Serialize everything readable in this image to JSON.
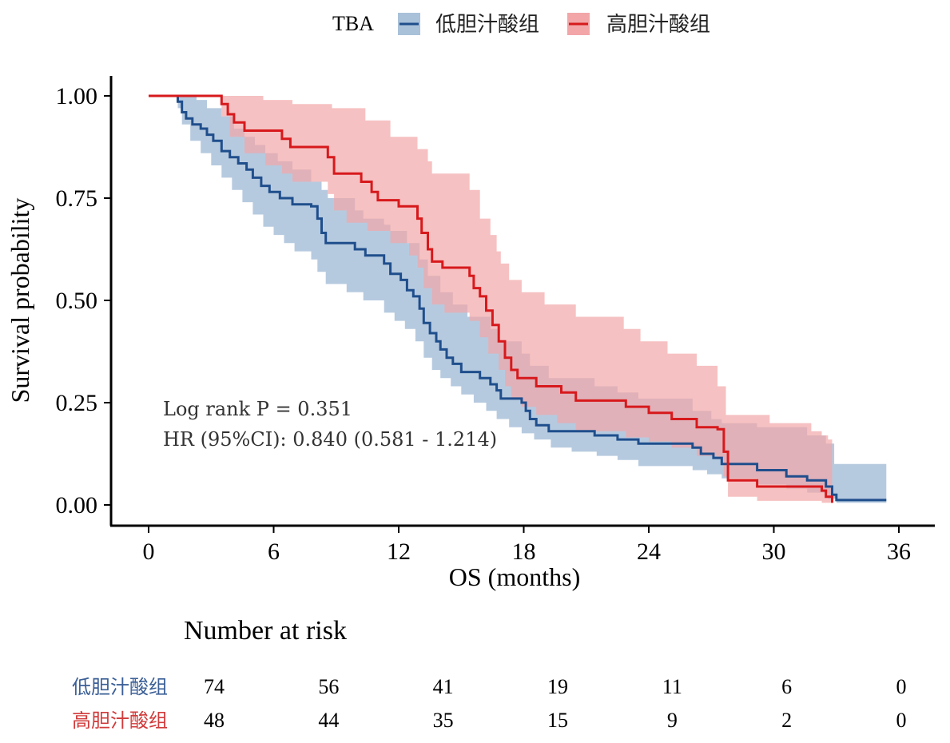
{
  "chart_data": {
    "type": "line",
    "subtype": "kaplan-meier",
    "title": "",
    "xlabel": "OS (months)",
    "ylabel": "Survival probability",
    "xlim": [
      0,
      36
    ],
    "ylim": [
      0,
      1
    ],
    "xticks": [
      0,
      6,
      12,
      18,
      24,
      30,
      36
    ],
    "xtick_labels": [
      "0",
      "6",
      "12",
      "18",
      "24",
      "30",
      "36"
    ],
    "yticks": [
      0,
      0.25,
      0.5,
      0.75,
      1.0
    ],
    "ytick_labels": [
      "0.00",
      "0.25",
      "0.50",
      "0.75",
      "1.00"
    ],
    "grid": false,
    "legend": {
      "title": "TBA",
      "position": "top",
      "entries": [
        "低胆汁酸组",
        "高胆汁酸组"
      ]
    },
    "annotations": [
      "Log rank P = 0.351",
      "HR (95%CI): 0.840 (0.581 - 1.214)"
    ],
    "series": [
      {
        "name": "低胆汁酸组",
        "color": "#1f4e8c",
        "ci_color": "#a9c1d9",
        "steps": [
          [
            0,
            1.0
          ],
          [
            1.4,
            0.986
          ],
          [
            1.6,
            0.96
          ],
          [
            1.8,
            0.945
          ],
          [
            2.1,
            0.93
          ],
          [
            2.5,
            0.92
          ],
          [
            2.8,
            0.905
          ],
          [
            3.1,
            0.89
          ],
          [
            3.5,
            0.865
          ],
          [
            3.9,
            0.85
          ],
          [
            4.3,
            0.835
          ],
          [
            4.7,
            0.82
          ],
          [
            5.0,
            0.8
          ],
          [
            5.4,
            0.78
          ],
          [
            5.8,
            0.765
          ],
          [
            6.3,
            0.75
          ],
          [
            6.9,
            0.735
          ],
          [
            7.8,
            0.73
          ],
          [
            8.1,
            0.7
          ],
          [
            8.3,
            0.665
          ],
          [
            8.5,
            0.64
          ],
          [
            9.9,
            0.625
          ],
          [
            10.4,
            0.61
          ],
          [
            11.3,
            0.59
          ],
          [
            11.6,
            0.565
          ],
          [
            12.1,
            0.55
          ],
          [
            12.4,
            0.525
          ],
          [
            12.7,
            0.51
          ],
          [
            13.0,
            0.48
          ],
          [
            13.2,
            0.445
          ],
          [
            13.5,
            0.42
          ],
          [
            13.8,
            0.4
          ],
          [
            14.0,
            0.38
          ],
          [
            14.3,
            0.36
          ],
          [
            14.6,
            0.345
          ],
          [
            15.0,
            0.325
          ],
          [
            15.9,
            0.31
          ],
          [
            16.4,
            0.295
          ],
          [
            16.7,
            0.28
          ],
          [
            16.9,
            0.26
          ],
          [
            17.9,
            0.25
          ],
          [
            18.1,
            0.23
          ],
          [
            18.3,
            0.21
          ],
          [
            18.6,
            0.195
          ],
          [
            19.2,
            0.18
          ],
          [
            21.4,
            0.17
          ],
          [
            22.5,
            0.16
          ],
          [
            23.5,
            0.15
          ],
          [
            26.1,
            0.14
          ],
          [
            26.5,
            0.125
          ],
          [
            27.1,
            0.115
          ],
          [
            27.5,
            0.1
          ],
          [
            29.2,
            0.085
          ],
          [
            30.6,
            0.07
          ],
          [
            31.6,
            0.06
          ],
          [
            32.5,
            0.045
          ],
          [
            32.8,
            0.025
          ],
          [
            33.0,
            0.012
          ],
          [
            35.4,
            0.012
          ]
        ],
        "ci_lower": [
          [
            0,
            1.0
          ],
          [
            1.4,
            0.97
          ],
          [
            1.6,
            0.93
          ],
          [
            2.0,
            0.89
          ],
          [
            2.5,
            0.86
          ],
          [
            3.0,
            0.83
          ],
          [
            3.5,
            0.8
          ],
          [
            4.0,
            0.77
          ],
          [
            4.5,
            0.74
          ],
          [
            5.0,
            0.71
          ],
          [
            5.5,
            0.68
          ],
          [
            6.0,
            0.66
          ],
          [
            6.5,
            0.64
          ],
          [
            7.0,
            0.62
          ],
          [
            7.8,
            0.6
          ],
          [
            8.1,
            0.57
          ],
          [
            8.5,
            0.54
          ],
          [
            9.5,
            0.52
          ],
          [
            10.3,
            0.5
          ],
          [
            11.3,
            0.47
          ],
          [
            11.8,
            0.45
          ],
          [
            12.3,
            0.43
          ],
          [
            12.8,
            0.4
          ],
          [
            13.2,
            0.36
          ],
          [
            13.6,
            0.33
          ],
          [
            14.0,
            0.31
          ],
          [
            14.5,
            0.29
          ],
          [
            15.0,
            0.27
          ],
          [
            15.6,
            0.25
          ],
          [
            16.2,
            0.23
          ],
          [
            16.7,
            0.21
          ],
          [
            17.3,
            0.19
          ],
          [
            17.9,
            0.175
          ],
          [
            18.5,
            0.16
          ],
          [
            19.3,
            0.14
          ],
          [
            20.3,
            0.13
          ],
          [
            21.5,
            0.12
          ],
          [
            22.5,
            0.11
          ],
          [
            23.5,
            0.095
          ],
          [
            26.1,
            0.085
          ],
          [
            26.8,
            0.075
          ],
          [
            27.5,
            0.065
          ],
          [
            29.2,
            0.05
          ],
          [
            30.6,
            0.04
          ],
          [
            31.6,
            0.03
          ],
          [
            32.6,
            0.015
          ],
          [
            33.0,
            0.005
          ],
          [
            35.4,
            0.005
          ]
        ],
        "ci_upper": [
          [
            0,
            1.0
          ],
          [
            1.4,
            1.0
          ],
          [
            2.3,
            0.99
          ],
          [
            2.8,
            0.97
          ],
          [
            3.5,
            0.95
          ],
          [
            4.1,
            0.92
          ],
          [
            4.6,
            0.9
          ],
          [
            5.1,
            0.88
          ],
          [
            5.6,
            0.86
          ],
          [
            6.2,
            0.84
          ],
          [
            6.9,
            0.82
          ],
          [
            7.8,
            0.79
          ],
          [
            8.3,
            0.77
          ],
          [
            8.6,
            0.75
          ],
          [
            9.9,
            0.72
          ],
          [
            10.3,
            0.7
          ],
          [
            11.3,
            0.685
          ],
          [
            11.6,
            0.67
          ],
          [
            12.4,
            0.64
          ],
          [
            13.0,
            0.6
          ],
          [
            13.4,
            0.56
          ],
          [
            14.0,
            0.52
          ],
          [
            14.6,
            0.49
          ],
          [
            15.3,
            0.46
          ],
          [
            16.4,
            0.43
          ],
          [
            16.8,
            0.4
          ],
          [
            17.9,
            0.37
          ],
          [
            18.3,
            0.34
          ],
          [
            19.2,
            0.31
          ],
          [
            21.4,
            0.29
          ],
          [
            22.5,
            0.275
          ],
          [
            23.5,
            0.26
          ],
          [
            26.1,
            0.23
          ],
          [
            27.0,
            0.21
          ],
          [
            27.5,
            0.2
          ],
          [
            29.2,
            0.19
          ],
          [
            31.6,
            0.17
          ],
          [
            32.5,
            0.15
          ],
          [
            32.9,
            0.1
          ],
          [
            35.4,
            0.095
          ]
        ]
      },
      {
        "name": "高胆汁酸组",
        "color": "#d7191c",
        "ci_color": "#f2a6a8",
        "steps": [
          [
            0,
            1.0
          ],
          [
            3.5,
            0.98
          ],
          [
            3.8,
            0.955
          ],
          [
            4.1,
            0.935
          ],
          [
            4.6,
            0.915
          ],
          [
            6.4,
            0.895
          ],
          [
            6.8,
            0.875
          ],
          [
            8.6,
            0.85
          ],
          [
            8.9,
            0.81
          ],
          [
            10.2,
            0.79
          ],
          [
            10.7,
            0.765
          ],
          [
            11.0,
            0.745
          ],
          [
            12.0,
            0.73
          ],
          [
            12.9,
            0.7
          ],
          [
            13.1,
            0.665
          ],
          [
            13.4,
            0.625
          ],
          [
            13.6,
            0.595
          ],
          [
            14.1,
            0.58
          ],
          [
            15.4,
            0.56
          ],
          [
            15.6,
            0.53
          ],
          [
            15.9,
            0.51
          ],
          [
            16.2,
            0.475
          ],
          [
            16.5,
            0.44
          ],
          [
            16.8,
            0.4
          ],
          [
            17.1,
            0.36
          ],
          [
            17.4,
            0.33
          ],
          [
            17.7,
            0.31
          ],
          [
            18.6,
            0.29
          ],
          [
            19.8,
            0.275
          ],
          [
            20.5,
            0.255
          ],
          [
            22.9,
            0.24
          ],
          [
            24.0,
            0.225
          ],
          [
            25.1,
            0.21
          ],
          [
            26.3,
            0.19
          ],
          [
            27.3,
            0.185
          ],
          [
            27.6,
            0.13
          ],
          [
            27.8,
            0.06
          ],
          [
            29.2,
            0.045
          ],
          [
            32.3,
            0.035
          ],
          [
            32.5,
            0.02
          ],
          [
            32.8,
            0.005
          ]
        ],
        "ci_lower": [
          [
            0,
            1.0
          ],
          [
            3.5,
            0.95
          ],
          [
            3.9,
            0.9
          ],
          [
            4.6,
            0.86
          ],
          [
            5.6,
            0.83
          ],
          [
            6.4,
            0.81
          ],
          [
            6.9,
            0.79
          ],
          [
            8.6,
            0.76
          ],
          [
            8.9,
            0.72
          ],
          [
            9.5,
            0.69
          ],
          [
            10.5,
            0.67
          ],
          [
            11.6,
            0.64
          ],
          [
            12.5,
            0.61
          ],
          [
            12.9,
            0.58
          ],
          [
            13.2,
            0.53
          ],
          [
            13.6,
            0.49
          ],
          [
            14.2,
            0.47
          ],
          [
            15.4,
            0.45
          ],
          [
            15.9,
            0.41
          ],
          [
            16.3,
            0.37
          ],
          [
            16.8,
            0.33
          ],
          [
            17.1,
            0.29
          ],
          [
            17.4,
            0.26
          ],
          [
            17.9,
            0.24
          ],
          [
            18.6,
            0.22
          ],
          [
            19.6,
            0.2
          ],
          [
            20.5,
            0.18
          ],
          [
            22.9,
            0.165
          ],
          [
            24.0,
            0.155
          ],
          [
            25.1,
            0.14
          ],
          [
            26.3,
            0.12
          ],
          [
            27.3,
            0.115
          ],
          [
            27.6,
            0.07
          ],
          [
            27.8,
            0.02
          ],
          [
            29.2,
            0.01
          ],
          [
            32.3,
            0.005
          ],
          [
            32.8,
            0.0
          ]
        ],
        "ci_upper": [
          [
            0,
            1.0
          ],
          [
            3.5,
            1.0
          ],
          [
            5.5,
            0.99
          ],
          [
            6.9,
            0.98
          ],
          [
            8.8,
            0.97
          ],
          [
            10.4,
            0.94
          ],
          [
            11.6,
            0.9
          ],
          [
            12.9,
            0.87
          ],
          [
            13.4,
            0.84
          ],
          [
            13.6,
            0.81
          ],
          [
            15.4,
            0.77
          ],
          [
            15.9,
            0.7
          ],
          [
            16.4,
            0.66
          ],
          [
            16.7,
            0.62
          ],
          [
            16.9,
            0.59
          ],
          [
            17.3,
            0.55
          ],
          [
            17.9,
            0.52
          ],
          [
            19.0,
            0.49
          ],
          [
            20.5,
            0.46
          ],
          [
            22.8,
            0.43
          ],
          [
            23.6,
            0.4
          ],
          [
            24.9,
            0.37
          ],
          [
            26.3,
            0.34
          ],
          [
            27.3,
            0.29
          ],
          [
            27.7,
            0.22
          ],
          [
            29.8,
            0.2
          ],
          [
            31.8,
            0.18
          ],
          [
            32.3,
            0.17
          ],
          [
            32.6,
            0.16
          ],
          [
            32.8,
            0.15
          ]
        ]
      }
    ],
    "risk_table": {
      "title": "Number at risk",
      "times": [
        0,
        6,
        12,
        18,
        24,
        30,
        36
      ],
      "rows": [
        {
          "group": "低胆汁酸组",
          "color": "#3b5f96",
          "values": [
            "74",
            "56",
            "41",
            "19",
            "11",
            "6",
            "0"
          ]
        },
        {
          "group": "高胆汁酸组",
          "color": "#d13b3b",
          "values": [
            "48",
            "44",
            "35",
            "15",
            "9",
            "2",
            "0"
          ]
        }
      ]
    }
  }
}
